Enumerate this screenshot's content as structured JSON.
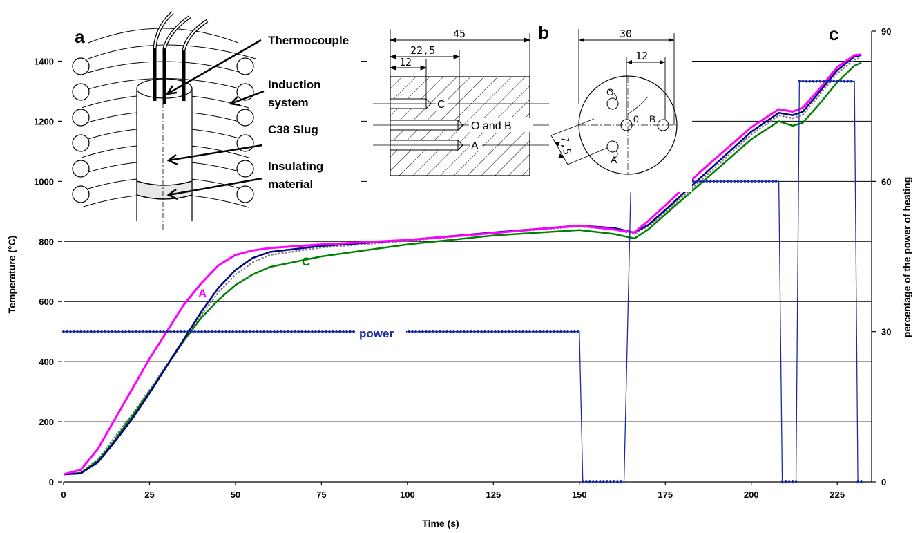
{
  "chart_data": {
    "type": "line",
    "xlabel": "Time (s)",
    "ylabel": "Temperature (°C)",
    "y2label": "percentage of the power of heating",
    "xlim": [
      0,
      235
    ],
    "ylim": [
      0,
      1500
    ],
    "y2lim": [
      0,
      90
    ],
    "x_ticks": [
      "0",
      "25",
      "50",
      "75",
      "100",
      "125",
      "150",
      "175",
      "200",
      "225"
    ],
    "y_ticks": [
      "0",
      "200",
      "400",
      "600",
      "800",
      "1000",
      "1200",
      "1400"
    ],
    "y2_ticks": [
      "0",
      "30",
      "60",
      "90"
    ],
    "grid": "horizontal",
    "series": [
      {
        "name": "A",
        "color": "#ff00ff",
        "x": [
          0,
          5,
          10,
          15,
          20,
          25,
          30,
          35,
          40,
          45,
          50,
          55,
          60,
          75,
          100,
          125,
          150,
          160,
          166,
          170,
          175,
          185,
          200,
          208,
          212,
          215,
          220,
          225,
          230,
          232
        ],
        "y": [
          25,
          40,
          110,
          210,
          310,
          410,
          500,
          590,
          660,
          720,
          755,
          770,
          778,
          790,
          805,
          828,
          853,
          840,
          830,
          868,
          920,
          1030,
          1180,
          1240,
          1232,
          1245,
          1310,
          1380,
          1420,
          1422
        ]
      },
      {
        "name": "C",
        "color": "#008000",
        "x": [
          0,
          5,
          10,
          15,
          20,
          25,
          30,
          35,
          40,
          45,
          50,
          55,
          60,
          75,
          100,
          125,
          150,
          160,
          166,
          170,
          175,
          185,
          200,
          208,
          212,
          215,
          220,
          225,
          230,
          232
        ],
        "y": [
          25,
          30,
          70,
          140,
          220,
          300,
          385,
          470,
          545,
          605,
          655,
          690,
          715,
          750,
          790,
          820,
          838,
          825,
          810,
          840,
          890,
          990,
          1140,
          1200,
          1185,
          1195,
          1260,
          1330,
          1385,
          1395
        ]
      },
      {
        "name": "O",
        "color": "#000080",
        "x": [
          0,
          5,
          10,
          15,
          20,
          25,
          30,
          35,
          40,
          45,
          50,
          55,
          60,
          75,
          100,
          125,
          150,
          160,
          166,
          170,
          175,
          185,
          200,
          208,
          212,
          215,
          220,
          225,
          230,
          232
        ],
        "y": [
          25,
          28,
          65,
          135,
          210,
          295,
          385,
          475,
          565,
          645,
          705,
          745,
          765,
          785,
          805,
          830,
          853,
          845,
          830,
          855,
          905,
          1010,
          1165,
          1228,
          1220,
          1232,
          1300,
          1370,
          1415,
          1420
        ]
      },
      {
        "name": "B",
        "color": "#808080",
        "x": [
          0,
          5,
          10,
          15,
          20,
          25,
          30,
          35,
          40,
          45,
          50,
          55,
          60,
          75,
          100,
          125,
          150,
          160,
          166,
          170,
          175,
          185,
          200,
          208,
          212,
          215,
          220,
          225,
          230,
          232
        ],
        "y": [
          25,
          30,
          75,
          150,
          225,
          305,
          390,
          475,
          555,
          630,
          690,
          730,
          755,
          780,
          802,
          828,
          850,
          840,
          825,
          850,
          898,
          1000,
          1155,
          1220,
          1210,
          1222,
          1290,
          1360,
          1405,
          1412
        ]
      },
      {
        "name": "power",
        "color": "#1a2aa0",
        "axis": "right",
        "x": [
          0,
          150,
          151,
          163,
          165,
          208,
          209,
          213,
          214,
          230,
          231,
          232
        ],
        "y": [
          30,
          30,
          0,
          0,
          60,
          60,
          0,
          0,
          80,
          80,
          0,
          0
        ]
      }
    ],
    "annotations": [
      "A",
      "C",
      "power"
    ]
  },
  "panels": {
    "a": "a",
    "b": "b",
    "c": "c"
  },
  "schematic": {
    "thermocouple": "Thermocouple",
    "induction_line1": "Induction",
    "induction_line2": "system",
    "slug": "C38 Slug",
    "insulating_line1": "Insulating",
    "insulating_line2": "material"
  },
  "drawing": {
    "dim_45": "45",
    "dim_22_5": "22,5",
    "dim_12": "12",
    "label_c": "C",
    "label_ob": "O and B",
    "label_a": "A",
    "dim_30": "30",
    "dim_12_right": "12",
    "dim_7_5": "7,5",
    "circle_c": "C",
    "circle_o": "0",
    "circle_b": "B",
    "circle_a": "A"
  }
}
